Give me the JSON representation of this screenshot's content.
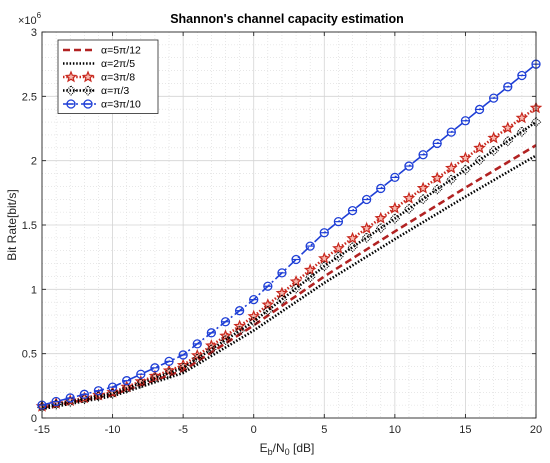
{
  "chart_data": {
    "type": "line",
    "title": "Shannon's channel capacity estimation",
    "xlabel_main": "E",
    "xlabel_sub1": "b",
    "xlabel_mid": "/N",
    "xlabel_sub2": "0",
    "xlabel_unit": " [dB]",
    "ylabel": "Bit Rate[bit/s]",
    "y_exponent_base": "×10",
    "y_exponent_power": "6",
    "xlim": [
      -15,
      20
    ],
    "ylim": [
      0,
      3
    ],
    "xticks": [
      -15,
      -10,
      -5,
      0,
      5,
      10,
      15,
      20
    ],
    "xtick_labels": [
      "-15",
      "-10",
      "-5",
      "0",
      "5",
      "10",
      "15",
      "20"
    ],
    "yticks": [
      0,
      0.5,
      1,
      1.5,
      2,
      2.5,
      3
    ],
    "ytick_labels": [
      "0",
      "0.5",
      "1",
      "1.5",
      "2",
      "2.5",
      "3"
    ],
    "grid": true,
    "legend_position": "top-left",
    "colors": {
      "s1": "#b22222",
      "s2": "#000000",
      "s3": "#c8281e",
      "s4": "#000000",
      "s5": "#1f3fd6"
    },
    "series": [
      {
        "name": "α=5π/12",
        "style": "dashed",
        "marker": "none",
        "x": [
          -15,
          -10,
          -5,
          0,
          5,
          10,
          15,
          20
        ],
        "y": [
          0.08,
          0.18,
          0.37,
          0.72,
          1.1,
          1.45,
          1.79,
          2.12
        ]
      },
      {
        "name": "α=2π/5",
        "style": "dotted",
        "marker": "none",
        "x": [
          -15,
          -10,
          -5,
          0,
          5,
          10,
          15,
          20
        ],
        "y": [
          0.07,
          0.17,
          0.35,
          0.68,
          1.05,
          1.39,
          1.72,
          2.04
        ]
      },
      {
        "name": "α=3π/8",
        "style": "dotted",
        "marker": "star",
        "x": [
          -15,
          -10,
          -5,
          0,
          5,
          10,
          15,
          20
        ],
        "y": [
          0.09,
          0.2,
          0.41,
          0.79,
          1.24,
          1.63,
          2.02,
          2.41
        ]
      },
      {
        "name": "α=π/3",
        "style": "dotted",
        "marker": "diamond",
        "x": [
          -15,
          -10,
          -5,
          0,
          5,
          10,
          15,
          20
        ],
        "y": [
          0.085,
          0.19,
          0.39,
          0.75,
          1.18,
          1.55,
          1.93,
          2.3
        ]
      },
      {
        "name": "α=3π/10",
        "style": "dashdot",
        "marker": "circle",
        "x": [
          -15,
          -10,
          -5,
          0,
          5,
          10,
          15,
          20
        ],
        "y": [
          0.1,
          0.24,
          0.49,
          0.92,
          1.44,
          1.87,
          2.31,
          2.75
        ]
      }
    ]
  }
}
